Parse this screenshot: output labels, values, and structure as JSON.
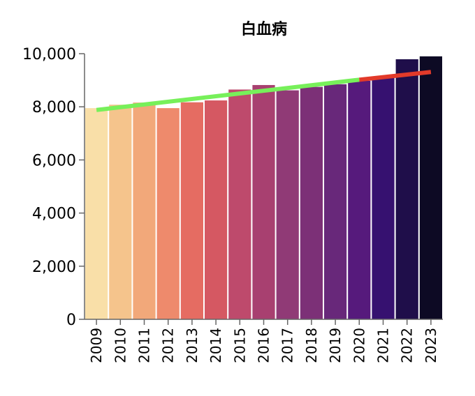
{
  "chart_data": {
    "type": "bar",
    "title": "白血病",
    "xlabel": "",
    "ylabel": "",
    "ylim": [
      0,
      10000
    ],
    "yticks": [
      0,
      2000,
      4000,
      6000,
      8000,
      10000
    ],
    "ytick_labels": [
      "0",
      "2,000",
      "4,000",
      "6,000",
      "8,000",
      "10,000"
    ],
    "categories": [
      "2009",
      "2010",
      "2011",
      "2012",
      "2013",
      "2014",
      "2015",
      "2016",
      "2017",
      "2018",
      "2019",
      "2020",
      "2021",
      "2022",
      "2023"
    ],
    "values": [
      7950,
      8080,
      8160,
      7950,
      8170,
      8240,
      8650,
      8820,
      8620,
      8750,
      8850,
      8980,
      9140,
      9790,
      9900
    ],
    "colors": [
      "#f9dfa8",
      "#f5c48c",
      "#f2a87a",
      "#ee8a6c",
      "#e56c62",
      "#d55862",
      "#be4a6c",
      "#a84070",
      "#903a76",
      "#7c3077",
      "#68287a",
      "#561a7c",
      "#361170",
      "#1f0e4a",
      "#0d0a24"
    ],
    "trend_lines": [
      {
        "from": "2009",
        "to": "2020",
        "start_value": 7880,
        "end_value": 9020,
        "color": "#77f05a"
      },
      {
        "from": "2020",
        "to": "2023",
        "start_value": 9020,
        "end_value": 9310,
        "color": "#e23a2a"
      }
    ],
    "grid": false,
    "legend": "none"
  }
}
